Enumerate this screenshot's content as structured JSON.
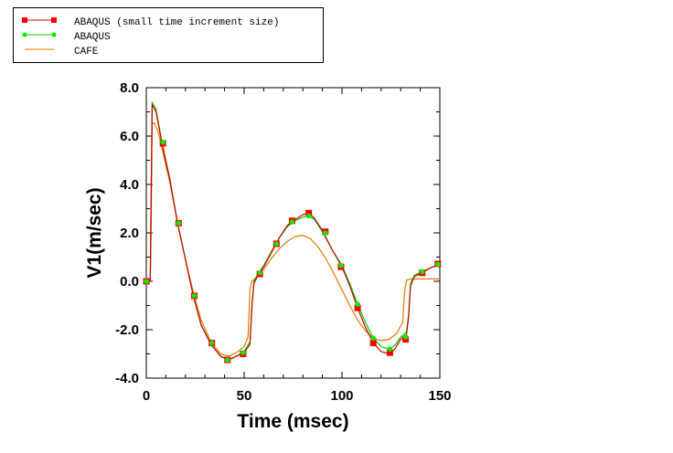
{
  "chart_data": {
    "type": "line",
    "title": "",
    "xlabel": "Time (msec)",
    "ylabel": "V1(m/sec)",
    "xlim": [
      0,
      150
    ],
    "ylim": [
      -4.0,
      8.0
    ],
    "xticks": [
      0,
      50,
      100,
      150
    ],
    "xtick_labels": [
      "0",
      "50",
      "100",
      "150"
    ],
    "yticks": [
      -4,
      -2,
      0,
      2,
      4,
      6,
      8
    ],
    "ytick_labels": [
      "-4.0",
      "-2.0",
      "0.0",
      "2.0",
      "4.0",
      "6.0",
      "8.0"
    ],
    "grid": false,
    "legend_position": "top-left, outside plot",
    "series": [
      {
        "name": "ABAQUS (small time increment size)",
        "color": "#cc0000",
        "marker_color": "#ff0000",
        "marker": "square",
        "x": [
          0,
          2,
          3,
          5,
          8,
          12,
          16,
          20,
          24,
          28,
          33,
          38,
          42,
          46,
          50,
          53,
          54,
          55,
          57,
          60,
          64,
          68,
          72,
          76,
          80,
          83,
          86,
          90,
          95,
          100,
          104,
          108,
          112,
          116,
          120,
          124,
          127,
          130,
          133,
          134,
          135,
          137,
          141,
          145,
          150
        ],
        "y": [
          0,
          0,
          7.3,
          7.0,
          5.7,
          4.2,
          2.4,
          0.9,
          -0.6,
          -1.8,
          -2.6,
          -3.1,
          -3.25,
          -3.1,
          -2.95,
          -2.6,
          -1.0,
          -0.1,
          0.25,
          0.6,
          1.2,
          1.8,
          2.3,
          2.55,
          2.75,
          2.82,
          2.6,
          2.1,
          1.3,
          0.6,
          -0.2,
          -1.1,
          -1.9,
          -2.55,
          -2.9,
          -3.0,
          -2.8,
          -2.4,
          -2.2,
          -1.5,
          -0.2,
          0.2,
          0.35,
          0.55,
          0.72
        ],
        "marker_x": [
          0,
          8.5,
          16.5,
          24.5,
          33.5,
          41.5,
          49.5,
          58,
          66.5,
          74.5,
          83,
          91.5,
          99.5,
          108,
          116,
          124.5,
          132.5,
          141,
          149
        ],
        "marker_y": [
          0,
          5.7,
          2.4,
          -0.6,
          -2.55,
          -3.25,
          -3.0,
          0.3,
          1.55,
          2.5,
          2.82,
          2.05,
          0.6,
          -1.1,
          -2.55,
          -2.95,
          -2.4,
          0.35,
          0.72
        ]
      },
      {
        "name": "ABAQUS",
        "color": "#00cc00",
        "marker_color": "#00ee00",
        "marker": "circle",
        "x": [
          0,
          2,
          3,
          5,
          8,
          12,
          16,
          20,
          24,
          28,
          33,
          38,
          42,
          46,
          50,
          53,
          54,
          55,
          57,
          60,
          64,
          68,
          72,
          76,
          80,
          83,
          86,
          90,
          95,
          100,
          104,
          108,
          112,
          116,
          120,
          124,
          127,
          130,
          133,
          134,
          135,
          137,
          141,
          145,
          150
        ],
        "y": [
          0,
          0,
          7.4,
          7.1,
          5.75,
          4.25,
          2.4,
          0.9,
          -0.6,
          -1.8,
          -2.6,
          -3.1,
          -3.25,
          -3.1,
          -2.9,
          -2.5,
          -0.9,
          0.0,
          0.3,
          0.65,
          1.25,
          1.8,
          2.25,
          2.5,
          2.65,
          2.7,
          2.55,
          2.05,
          1.3,
          0.65,
          -0.1,
          -0.95,
          -1.7,
          -2.35,
          -2.7,
          -2.8,
          -2.65,
          -2.3,
          -2.1,
          -1.4,
          -0.1,
          0.25,
          0.4,
          0.55,
          0.7
        ],
        "marker_x": [
          0,
          8.5,
          16.5,
          24.5,
          33.5,
          41.5,
          49.5,
          58,
          66.5,
          74.5,
          83,
          91.5,
          99.5,
          108,
          116,
          124.5,
          132.5,
          141,
          149
        ],
        "marker_y": [
          0,
          5.75,
          2.4,
          -0.6,
          -2.55,
          -3.25,
          -2.95,
          0.35,
          1.55,
          2.45,
          2.7,
          2.0,
          0.65,
          -0.95,
          -2.35,
          -2.8,
          -2.3,
          0.4,
          0.7
        ]
      },
      {
        "name": "CAFE",
        "color": "#e07800",
        "marker": "none",
        "x": [
          0,
          2,
          2.5,
          3,
          4,
          6,
          8,
          12,
          16,
          20,
          24,
          28,
          33,
          38,
          42,
          46,
          50,
          52,
          53,
          54,
          56,
          60,
          64,
          68,
          72,
          76,
          80,
          84,
          88,
          92,
          96,
          100,
          104,
          108,
          112,
          116,
          120,
          124,
          128,
          131,
          132,
          133,
          136,
          140,
          145,
          150
        ],
        "y": [
          0,
          0,
          2.2,
          6.5,
          6.55,
          6.2,
          5.5,
          4.1,
          2.4,
          0.9,
          -0.45,
          -1.6,
          -2.5,
          -3.0,
          -3.1,
          -2.95,
          -2.7,
          -2.3,
          -0.3,
          0.0,
          0.15,
          0.5,
          0.95,
          1.35,
          1.65,
          1.85,
          1.9,
          1.75,
          1.4,
          0.9,
          0.3,
          -0.35,
          -1.0,
          -1.6,
          -2.05,
          -2.35,
          -2.45,
          -2.4,
          -2.15,
          -1.7,
          -0.4,
          0.05,
          0.1,
          0.1,
          0.1,
          0.1
        ]
      }
    ]
  }
}
